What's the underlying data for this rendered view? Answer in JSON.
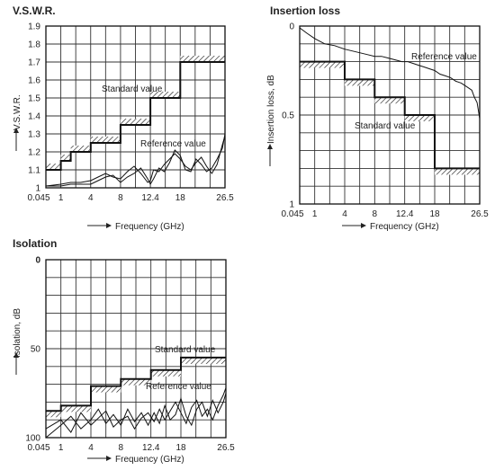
{
  "chart_data": [
    {
      "type": "line",
      "title": "V.S.W.R.",
      "ylabel": "V.S.W.R.",
      "xlabel": "Frequency (GHz)",
      "ylim": [
        1.0,
        1.9
      ],
      "xlim": [
        0.045,
        26.5
      ],
      "x_ticks": [
        "0.045",
        "1",
        "4",
        "8",
        "12.4",
        "18",
        "26.5"
      ],
      "y_ticks": [
        "1",
        "1.1",
        "1.2",
        "1.3",
        "1.4",
        "1.5",
        "1.6",
        "1.7",
        "1.8",
        "1.9"
      ],
      "grid": true,
      "annotations": [
        "Standard value",
        "Reference value"
      ],
      "standard_value": [
        {
          "x_start": 0.045,
          "x_end": 1,
          "value": 1.1
        },
        {
          "x_start": 1,
          "x_end": 2,
          "value": 1.15
        },
        {
          "x_start": 2,
          "x_end": 4,
          "value": 1.2
        },
        {
          "x_start": 4,
          "x_end": 8,
          "value": 1.25
        },
        {
          "x_start": 8,
          "x_end": 12.4,
          "value": 1.35
        },
        {
          "x_start": 12.4,
          "x_end": 18,
          "value": 1.5
        },
        {
          "x_start": 18,
          "x_end": 26.5,
          "value": 1.7
        }
      ],
      "series": [
        {
          "x": [
            0.045,
            1,
            2,
            3,
            4,
            5,
            6,
            7,
            8,
            9,
            10,
            11,
            12,
            12.4,
            13,
            14,
            15,
            16,
            17,
            18,
            19,
            20,
            21,
            22,
            23,
            24,
            25,
            26,
            26.5
          ],
          "values": [
            1.01,
            1.02,
            1.03,
            1.03,
            1.04,
            1.06,
            1.08,
            1.06,
            1.05,
            1.09,
            1.12,
            1.08,
            1.03,
            1.04,
            1.1,
            1.09,
            1.13,
            1.16,
            1.19,
            1.16,
            1.12,
            1.1,
            1.14,
            1.17,
            1.12,
            1.08,
            1.13,
            1.24,
            1.29
          ]
        },
        {
          "x": [
            0.045,
            1,
            2,
            3,
            4,
            5,
            6,
            7,
            8,
            9,
            10,
            11,
            12,
            12.4,
            13,
            14,
            15,
            16,
            17,
            18,
            19,
            20,
            21,
            22,
            23,
            24,
            25,
            26,
            26.5
          ],
          "values": [
            1.01,
            1.01,
            1.02,
            1.02,
            1.02,
            1.04,
            1.06,
            1.07,
            1.03,
            1.06,
            1.08,
            1.11,
            1.05,
            1.02,
            1.05,
            1.11,
            1.09,
            1.14,
            1.21,
            1.18,
            1.1,
            1.09,
            1.16,
            1.13,
            1.09,
            1.11,
            1.16,
            1.22,
            1.3
          ]
        }
      ]
    },
    {
      "type": "line",
      "title": "Insertion loss",
      "ylabel": "Insertion loss, dB",
      "xlabel": "Frequency (GHz)",
      "ylim": [
        0,
        1
      ],
      "inverted_y": true,
      "xlim": [
        0.045,
        26.5
      ],
      "x_ticks": [
        "0.045",
        "1",
        "4",
        "8",
        "12.4",
        "18",
        "26.5"
      ],
      "y_ticks": [
        "0",
        "0.5",
        "1"
      ],
      "grid": true,
      "annotations": [
        "Reference value",
        "Standard value"
      ],
      "standard_value": [
        {
          "x_start": 0.045,
          "x_end": 4,
          "value": 0.2
        },
        {
          "x_start": 4,
          "x_end": 8,
          "value": 0.3
        },
        {
          "x_start": 8,
          "x_end": 12.4,
          "value": 0.4
        },
        {
          "x_start": 12.4,
          "x_end": 18,
          "value": 0.5
        },
        {
          "x_start": 18,
          "x_end": 26.5,
          "value": 0.8
        }
      ],
      "series": [
        {
          "x": [
            0.045,
            0.5,
            1,
            2,
            3,
            4,
            5,
            6,
            7,
            8,
            9,
            10,
            11,
            12,
            13,
            14,
            15,
            16,
            17,
            18,
            19,
            20,
            21,
            22,
            23,
            24,
            25,
            25.5,
            26,
            26.5
          ],
          "values": [
            0.01,
            0.04,
            0.07,
            0.1,
            0.11,
            0.13,
            0.14,
            0.15,
            0.16,
            0.17,
            0.17,
            0.18,
            0.19,
            0.2,
            0.2,
            0.21,
            0.22,
            0.23,
            0.24,
            0.25,
            0.27,
            0.28,
            0.29,
            0.31,
            0.32,
            0.34,
            0.36,
            0.4,
            0.43,
            0.52
          ]
        }
      ]
    },
    {
      "type": "line",
      "title": "Isolation",
      "ylabel": "Isolation, dB",
      "xlabel": "Frequency (GHz)",
      "ylim": [
        0,
        100
      ],
      "inverted_y": true,
      "xlim": [
        0.045,
        26.5
      ],
      "x_ticks": [
        "0.045",
        "1",
        "4",
        "8",
        "12.4",
        "18",
        "26.5"
      ],
      "y_ticks": [
        "0",
        "50",
        "100"
      ],
      "grid": true,
      "annotations": [
        "Standard value",
        "Reference value"
      ],
      "standard_value": [
        {
          "x_start": 0.045,
          "x_end": 1,
          "value": 85
        },
        {
          "x_start": 1,
          "x_end": 4,
          "value": 82
        },
        {
          "x_start": 4,
          "x_end": 8,
          "value": 71
        },
        {
          "x_start": 8,
          "x_end": 12.4,
          "value": 67
        },
        {
          "x_start": 12.4,
          "x_end": 18,
          "value": 62
        },
        {
          "x_start": 18,
          "x_end": 26.5,
          "value": 55
        }
      ],
      "series": [
        {
          "x": [
            0.045,
            1,
            2,
            3,
            4,
            5,
            6,
            7,
            8,
            9,
            10,
            11,
            12,
            13,
            14,
            15,
            16,
            17,
            18,
            19,
            20,
            21,
            22,
            23,
            24,
            25,
            26,
            26.5
          ],
          "values": [
            95,
            90,
            97,
            86,
            93,
            89,
            85,
            94,
            90,
            88,
            95,
            89,
            86,
            91,
            84,
            90,
            85,
            80,
            86,
            92,
            83,
            79,
            88,
            84,
            90,
            82,
            76,
            72
          ]
        },
        {
          "x": [
            0.045,
            1,
            2,
            3,
            4,
            5,
            6,
            7,
            8,
            9,
            10,
            11,
            12,
            13,
            14,
            15,
            16,
            17,
            18,
            19,
            20,
            21,
            22,
            23,
            24,
            25,
            26,
            26.5
          ],
          "values": [
            100,
            93,
            88,
            95,
            90,
            84,
            92,
            87,
            93,
            84,
            91,
            86,
            93,
            86,
            92,
            82,
            90,
            87,
            78,
            88,
            93,
            84,
            80,
            88,
            79,
            86,
            80,
            75
          ]
        }
      ]
    }
  ]
}
